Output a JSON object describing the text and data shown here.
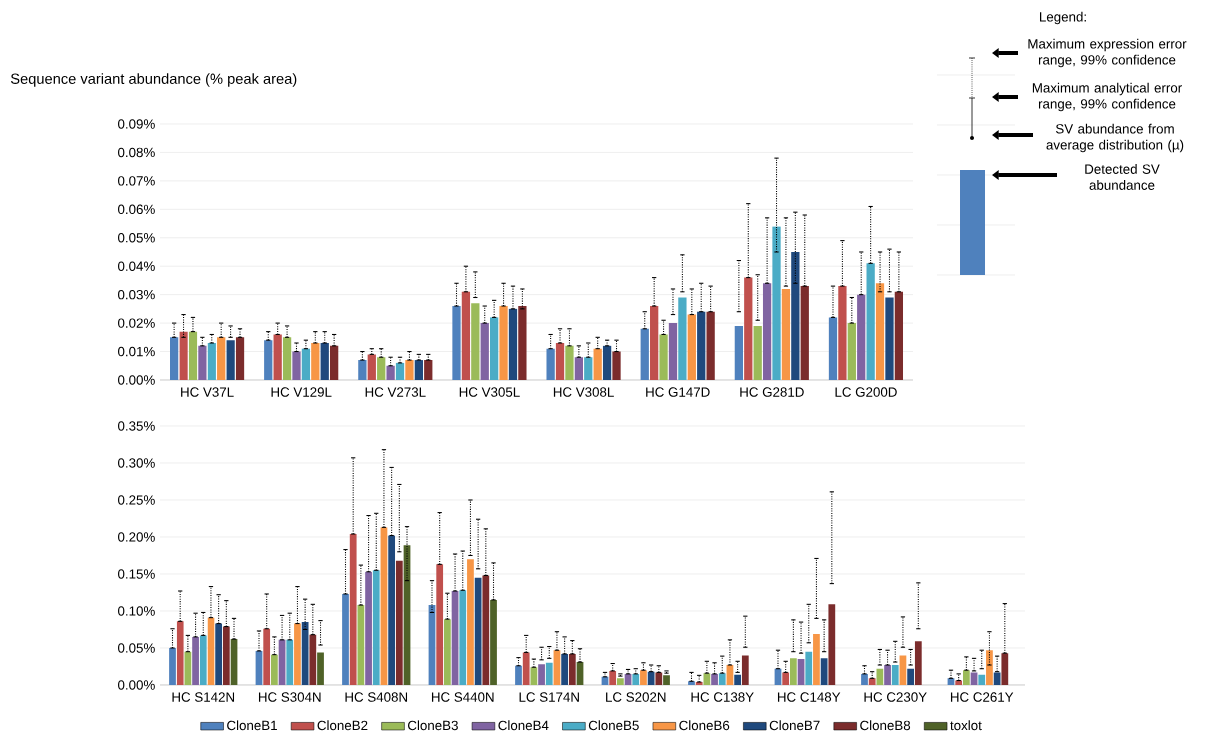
{
  "chart_data": [
    {
      "type": "bar",
      "ylabel": "Sequence variant abundance (% peak area)",
      "annotations": [
        "Legend:",
        "Maximum expression error range, 99% confidence",
        "Maximum analytical error range, 99% confidence",
        "SV abundance from average distribution (µ)",
        "Detected SV abundance"
      ],
      "categories": [
        "HC V37L",
        "HC V129L",
        "HC V273L",
        "HC V305L",
        "HC V308L",
        "HC G147D",
        "HC G281D",
        "LC G200D"
      ],
      "ylim": [
        0,
        0.09
      ],
      "yticks": [
        {
          "value": 0,
          "label": "0.00%"
        },
        {
          "value": 0.01,
          "label": "0.01%"
        },
        {
          "value": 0.02,
          "label": "0.02%"
        },
        {
          "value": 0.03,
          "label": "0.03%"
        },
        {
          "value": 0.04,
          "label": "0.04%"
        },
        {
          "value": 0.05,
          "label": "0.05%"
        },
        {
          "value": 0.06,
          "label": "0.06%"
        },
        {
          "value": 0.07,
          "label": "0.07%"
        },
        {
          "value": 0.08,
          "label": "0.08%"
        },
        {
          "value": 0.09,
          "label": "0.09%"
        }
      ],
      "grid": "y",
      "series": [
        {
          "color": "#4f81bd",
          "values": [
            0.015,
            0.014,
            0.007,
            0.026,
            0.011,
            0.018,
            0.019,
            0.022
          ],
          "errors": [
            [
              0.015,
              0.02
            ],
            [
              0.014,
              0.017
            ],
            [
              0.007,
              0.01
            ],
            [
              0.026,
              0.034
            ],
            [
              0.011,
              0.016
            ],
            [
              0.018,
              0.024
            ],
            [
              0.024,
              0.042
            ],
            [
              0.022,
              0.033
            ]
          ]
        },
        {
          "color": "#c0504d",
          "values": [
            0.017,
            0.016,
            0.009,
            0.031,
            0.013,
            0.026,
            0.036,
            0.033
          ],
          "errors": [
            [
              0.015,
              0.023
            ],
            [
              0.016,
              0.02
            ],
            [
              0.009,
              0.011
            ],
            [
              0.031,
              0.04
            ],
            [
              0.013,
              0.018
            ],
            [
              0.026,
              0.036
            ],
            [
              0.036,
              0.062
            ],
            [
              0.033,
              0.049
            ]
          ]
        },
        {
          "color": "#9bbb59",
          "values": [
            0.017,
            0.015,
            0.008,
            0.027,
            0.012,
            0.016,
            0.019,
            0.02
          ],
          "errors": [
            [
              0.017,
              0.022
            ],
            [
              0.015,
              0.019
            ],
            [
              0.008,
              0.011
            ],
            [
              0.029,
              0.038
            ],
            [
              0.012,
              0.018
            ],
            [
              0.016,
              0.021
            ],
            [
              0.021,
              0.037
            ],
            [
              0.02,
              0.029
            ]
          ]
        },
        {
          "color": "#8064a2",
          "values": [
            0.012,
            0.01,
            0.005,
            0.02,
            0.008,
            0.02,
            0.034,
            0.03
          ],
          "errors": [
            [
              0.012,
              0.015
            ],
            [
              0.01,
              0.013
            ],
            [
              0.005,
              0.008
            ],
            [
              0.02,
              0.026
            ],
            [
              0.008,
              0.012
            ],
            [
              0.023,
              0.032
            ],
            [
              0.034,
              0.057
            ],
            [
              0.03,
              0.045
            ]
          ]
        },
        {
          "color": "#4bacc6",
          "values": [
            0.013,
            0.011,
            0.006,
            0.022,
            0.008,
            0.029,
            0.054,
            0.041
          ],
          "errors": [
            [
              0.013,
              0.016
            ],
            [
              0.011,
              0.014
            ],
            [
              0.006,
              0.008
            ],
            [
              0.022,
              0.028
            ],
            [
              0.008,
              0.013
            ],
            [
              0.031,
              0.044
            ],
            [
              0.045,
              0.078
            ],
            [
              0.041,
              0.061
            ]
          ]
        },
        {
          "color": "#f79646",
          "values": [
            0.015,
            0.013,
            0.007,
            0.026,
            0.011,
            0.023,
            0.032,
            0.034
          ],
          "errors": [
            [
              0.015,
              0.02
            ],
            [
              0.013,
              0.017
            ],
            [
              0.007,
              0.01
            ],
            [
              0.026,
              0.034
            ],
            [
              0.011,
              0.015
            ],
            [
              0.023,
              0.032
            ],
            [
              0.033,
              0.057
            ],
            [
              0.031,
              0.045
            ]
          ]
        },
        {
          "color": "#1f497d",
          "values": [
            0.014,
            0.013,
            0.007,
            0.025,
            0.012,
            0.024,
            0.045,
            0.029
          ],
          "errors": [
            [
              0.015,
              0.019
            ],
            [
              0.013,
              0.017
            ],
            [
              0.007,
              0.009
            ],
            [
              0.025,
              0.033
            ],
            [
              0.012,
              0.014
            ],
            [
              0.024,
              0.034
            ],
            [
              0.034,
              0.059
            ],
            [
              0.031,
              0.046
            ]
          ]
        },
        {
          "color": "#7b2c2c",
          "values": [
            0.015,
            0.012,
            0.007,
            0.026,
            0.01,
            0.024,
            0.033,
            0.031
          ],
          "errors": [
            [
              0.015,
              0.018
            ],
            [
              0.012,
              0.016
            ],
            [
              0.007,
              0.009
            ],
            [
              0.025,
              0.032
            ],
            [
              0.01,
              0.014
            ],
            [
              0.024,
              0.033
            ],
            [
              0.033,
              0.058
            ],
            [
              0.031,
              0.045
            ]
          ]
        }
      ]
    },
    {
      "type": "bar",
      "categories": [
        "HC S142N",
        "HC S304N",
        "HC S408N",
        "HC S440N",
        "LC S174N",
        "LC S202N",
        "HC C138Y",
        "HC C148Y",
        "HC C230Y",
        "HC C261Y"
      ],
      "ylim": [
        0,
        0.35
      ],
      "yticks": [
        {
          "value": 0,
          "label": "0.00%"
        },
        {
          "value": 0.05,
          "label": "0.05%"
        },
        {
          "value": 0.1,
          "label": "0.10%"
        },
        {
          "value": 0.15,
          "label": "0.15%"
        },
        {
          "value": 0.2,
          "label": "0.20%"
        },
        {
          "value": 0.25,
          "label": "0.25%"
        },
        {
          "value": 0.3,
          "label": "0.30%"
        },
        {
          "value": 0.35,
          "label": "0.35%"
        }
      ],
      "grid": "y",
      "legend": "bottom",
      "series": [
        {
          "name": "CloneB1",
          "color": "#4f81bd",
          "values": [
            0.05,
            0.046,
            0.123,
            0.108,
            0.026,
            0.011,
            0.005,
            0.022,
            0.015,
            0.009
          ],
          "errors": [
            [
              0.05,
              0.076
            ],
            [
              0.046,
              0.073
            ],
            [
              0.123,
              0.183
            ],
            [
              0.098,
              0.141
            ],
            [
              0.026,
              0.037
            ],
            [
              0.011,
              0.017
            ],
            [
              0.005,
              0.017
            ],
            [
              0.022,
              0.047
            ],
            [
              0.015,
              0.026
            ],
            [
              0.009,
              0.02
            ]
          ]
        },
        {
          "name": "CloneB2",
          "color": "#c0504d",
          "values": [
            0.086,
            0.076,
            0.204,
            0.163,
            0.044,
            0.019,
            0.004,
            0.017,
            0.009,
            0.006
          ],
          "errors": [
            [
              0.086,
              0.127
            ],
            [
              0.076,
              0.123
            ],
            [
              0.204,
              0.307
            ],
            [
              0.163,
              0.233
            ],
            [
              0.044,
              0.067
            ],
            [
              0.019,
              0.029
            ],
            [
              0.004,
              0.013
            ],
            [
              0.017,
              0.032
            ],
            [
              0.009,
              0.018
            ],
            [
              0.006,
              0.015
            ]
          ]
        },
        {
          "name": "CloneB3",
          "color": "#9bbb59",
          "values": [
            0.045,
            0.041,
            0.108,
            0.089,
            0.024,
            0.009,
            0.016,
            0.036,
            0.022,
            0.02
          ],
          "errors": [
            [
              0.045,
              0.067
            ],
            [
              0.041,
              0.065
            ],
            [
              0.108,
              0.162
            ],
            [
              0.089,
              0.124
            ],
            [
              0.024,
              0.035
            ],
            [
              0.012,
              0.015
            ],
            [
              0.016,
              0.032
            ],
            [
              0.045,
              0.088
            ],
            [
              0.027,
              0.048
            ],
            [
              0.02,
              0.038
            ]
          ]
        },
        {
          "name": "CloneB4",
          "color": "#8064a2",
          "values": [
            0.065,
            0.061,
            0.153,
            0.127,
            0.028,
            0.015,
            0.015,
            0.035,
            0.027,
            0.017
          ],
          "errors": [
            [
              0.065,
              0.097
            ],
            [
              0.061,
              0.094
            ],
            [
              0.153,
              0.229
            ],
            [
              0.127,
              0.177
            ],
            [
              0.034,
              0.051
            ],
            [
              0.015,
              0.021
            ],
            [
              0.015,
              0.03
            ],
            [
              0.043,
              0.085
            ],
            [
              0.027,
              0.047
            ],
            [
              0.019,
              0.036
            ]
          ]
        },
        {
          "name": "CloneB5",
          "color": "#4bacc6",
          "values": [
            0.067,
            0.061,
            0.155,
            0.128,
            0.03,
            0.015,
            0.016,
            0.045,
            0.027,
            0.014
          ],
          "errors": [
            [
              0.067,
              0.098
            ],
            [
              0.061,
              0.097
            ],
            [
              0.155,
              0.232
            ],
            [
              0.128,
              0.181
            ],
            [
              0.036,
              0.052
            ],
            [
              0.015,
              0.022
            ],
            [
              0.016,
              0.039
            ],
            [
              0.057,
              0.109
            ],
            [
              0.031,
              0.059
            ],
            [
              0.022,
              0.047
            ]
          ]
        },
        {
          "name": "CloneB6",
          "color": "#f79646",
          "values": [
            0.091,
            0.083,
            0.213,
            0.17,
            0.047,
            0.02,
            0.027,
            0.069,
            0.04,
            0.047
          ],
          "errors": [
            [
              0.091,
              0.133
            ],
            [
              0.083,
              0.133
            ],
            [
              0.213,
              0.318
            ],
            [
              0.175,
              0.25
            ],
            [
              0.047,
              0.072
            ],
            [
              0.02,
              0.03
            ],
            [
              0.027,
              0.061
            ],
            [
              0.09,
              0.171
            ],
            [
              0.051,
              0.092
            ],
            [
              0.027,
              0.072
            ]
          ]
        },
        {
          "name": "CloneB7",
          "color": "#1f497d",
          "values": [
            0.083,
            0.085,
            0.202,
            0.145,
            0.042,
            0.018,
            0.014,
            0.036,
            0.022,
            0.017
          ],
          "errors": [
            [
              0.083,
              0.122
            ],
            [
              0.075,
              0.116
            ],
            [
              0.202,
              0.294
            ],
            [
              0.157,
              0.224
            ],
            [
              0.042,
              0.065
            ],
            [
              0.018,
              0.027
            ],
            [
              0.017,
              0.032
            ],
            [
              0.045,
              0.088
            ],
            [
              0.027,
              0.048
            ],
            [
              0.018,
              0.039
            ]
          ]
        },
        {
          "name": "CloneB8",
          "color": "#7b2c2c",
          "values": [
            0.079,
            0.068,
            0.168,
            0.148,
            0.042,
            0.017,
            0.04,
            0.109,
            0.059,
            0.043
          ],
          "errors": [
            [
              0.079,
              0.114
            ],
            [
              0.068,
              0.109
            ],
            [
              0.18,
              0.271
            ],
            [
              0.148,
              0.211
            ],
            [
              0.042,
              0.06
            ],
            [
              0.017,
              0.026
            ],
            [
              0.051,
              0.093
            ],
            [
              0.137,
              0.261
            ],
            [
              0.076,
              0.138
            ],
            [
              0.043,
              0.11
            ]
          ]
        },
        {
          "name": "toxlot",
          "color": "#4f6228",
          "values": [
            0.062,
            0.044,
            0.189,
            0.115,
            0.031,
            0.013,
            null,
            null,
            null,
            null
          ],
          "errors": [
            [
              0.062,
              0.09
            ],
            [
              0.054,
              0.087
            ],
            [
              0.141,
              0.214
            ],
            [
              0.115,
              0.165
            ],
            [
              0.031,
              0.049
            ],
            [
              0.016,
              0.019
            ],
            null,
            null,
            null,
            null
          ]
        }
      ]
    }
  ]
}
